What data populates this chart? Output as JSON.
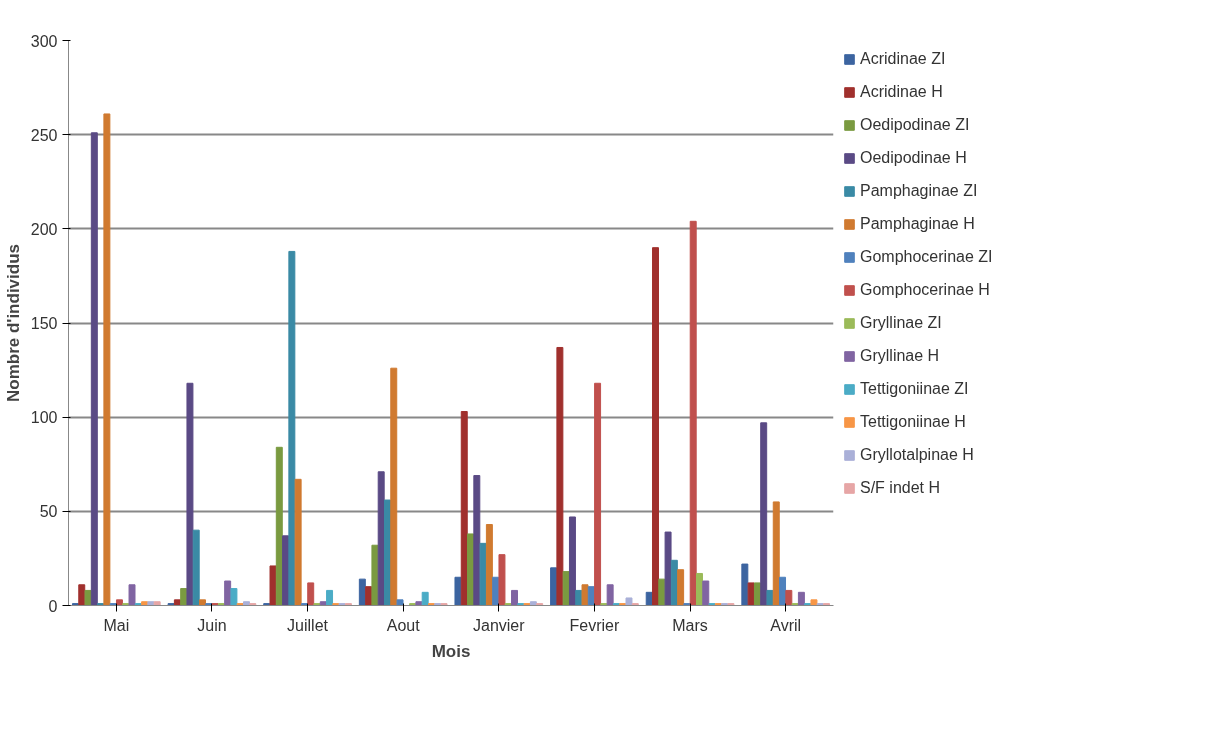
{
  "chart_data": {
    "type": "bar",
    "xlabel": "Mois",
    "ylabel": "Nombre d'individus",
    "categories": [
      "Mai",
      "Juin",
      "Juillet",
      "Aout",
      "Janvier",
      "Fevrier",
      "Mars",
      "Avril"
    ],
    "ylim": [
      0,
      300
    ],
    "yticks": [
      0,
      50,
      100,
      150,
      200,
      250,
      300
    ],
    "grid": "y",
    "legend": "right",
    "series": [
      {
        "name": "Acridinae ZI",
        "color": "#3c64a0",
        "values": [
          1,
          1,
          1,
          14,
          15,
          20,
          7,
          22
        ]
      },
      {
        "name": "Acridinae H",
        "color": "#a0302d",
        "values": [
          11,
          3,
          21,
          10,
          103,
          137,
          190,
          12
        ]
      },
      {
        "name": "Oedipodinae ZI",
        "color": "#7a9a40",
        "values": [
          8,
          9,
          84,
          32,
          38,
          18,
          14,
          12
        ]
      },
      {
        "name": "Oedipodinae H",
        "color": "#5a4a85",
        "values": [
          251,
          118,
          37,
          71,
          69,
          47,
          39,
          97
        ]
      },
      {
        "name": "Pamphaginae ZI",
        "color": "#3a8aa5",
        "values": [
          1,
          40,
          188,
          56,
          33,
          8,
          24,
          8
        ]
      },
      {
        "name": "Pamphaginae H",
        "color": "#d07a30",
        "values": [
          261,
          3,
          67,
          126,
          43,
          11,
          19,
          55
        ]
      },
      {
        "name": "Gomphocerinae ZI",
        "color": "#4f81bd",
        "values": [
          1,
          1,
          1,
          3,
          15,
          10,
          1,
          15
        ]
      },
      {
        "name": "Gomphocerinae H",
        "color": "#c0504d",
        "values": [
          3,
          1,
          12,
          null,
          27,
          118,
          204,
          8
        ]
      },
      {
        "name": "Gryllinae ZI",
        "color": "#9bbb59",
        "values": [
          1,
          1,
          1,
          1,
          1,
          1,
          17,
          1
        ]
      },
      {
        "name": "Gryllinae H",
        "color": "#8064a2",
        "values": [
          11,
          13,
          2,
          2,
          8,
          11,
          13,
          7
        ]
      },
      {
        "name": "Tettigoniinae ZI",
        "color": "#4bacc6",
        "values": [
          1,
          9,
          8,
          7,
          1,
          1,
          1,
          1
        ]
      },
      {
        "name": "Tettigoniinae H",
        "color": "#f79646",
        "values": [
          2,
          1,
          1,
          1,
          1,
          1,
          1,
          3
        ]
      },
      {
        "name": "Gryllotalpinae H",
        "color": "#aab0d8",
        "values": [
          2,
          2,
          1,
          1,
          2,
          4,
          1,
          1
        ]
      },
      {
        "name": "S/F indet H",
        "color": "#e6a6a6",
        "values": [
          2,
          1,
          1,
          1,
          1,
          1,
          1,
          1
        ]
      }
    ]
  }
}
